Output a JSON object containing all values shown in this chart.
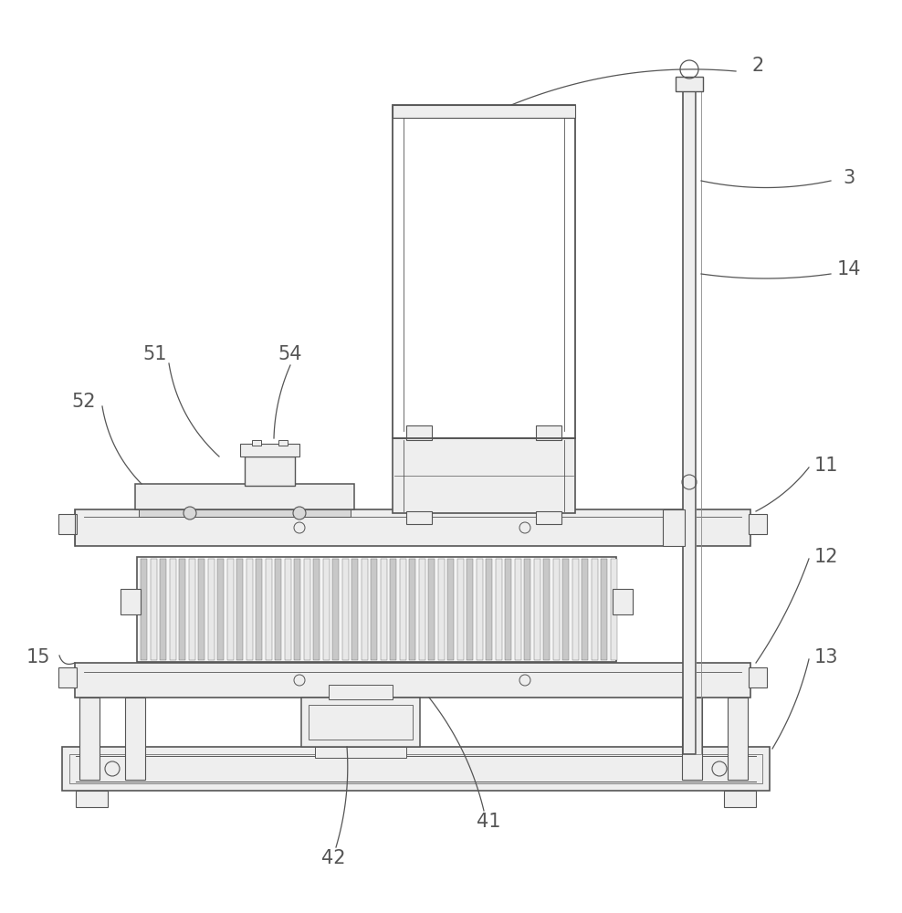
{
  "bg_color": "#ffffff",
  "line_color": "#555555",
  "fill_light": "#eeeeee",
  "fill_mid": "#d8d8d8",
  "fill_stripe1": "#c8c8c8",
  "fill_stripe2": "#e8e8e8",
  "font_size": 15
}
